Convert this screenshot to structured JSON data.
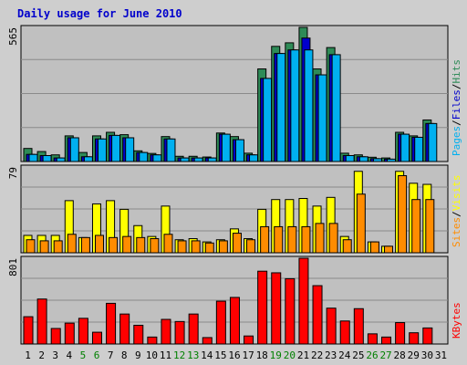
{
  "title": "Daily usage for June 2010",
  "colors": {
    "background": "#cecece",
    "plot_bg": "#c0c0c0",
    "hits": "#2e8b57",
    "files": "#0000cc",
    "pages": "#00b0f0",
    "visits": "#ffff00",
    "sites": "#ff8c00",
    "kbytes": "#ff0000",
    "title": "#0000cc",
    "weekend_day": "#008000"
  },
  "chart_data": [
    {
      "type": "bar",
      "panel": "hits-files-pages",
      "y_max_label": "565",
      "ylim": [
        0,
        565
      ],
      "side_labels": [
        "Pages",
        "/",
        "Files",
        "/",
        "Hits"
      ],
      "categories": [
        "1",
        "2",
        "3",
        "4",
        "5",
        "6",
        "7",
        "8",
        "9",
        "10",
        "11",
        "12",
        "13",
        "14",
        "15",
        "16",
        "17",
        "18",
        "19",
        "20",
        "21",
        "22",
        "23",
        "24",
        "25",
        "26",
        "27",
        "28",
        "29",
        "30"
      ],
      "series": [
        {
          "name": "Hits",
          "values": [
            55,
            42,
            28,
            108,
            38,
            108,
            123,
            113,
            45,
            34,
            105,
            22,
            22,
            19,
            120,
            105,
            35,
            390,
            485,
            500,
            565,
            390,
            480,
            35,
            28,
            18,
            15,
            123,
            108,
            175
          ]
        },
        {
          "name": "Files",
          "values": [
            30,
            25,
            15,
            100,
            20,
            95,
            110,
            100,
            38,
            28,
            95,
            15,
            15,
            15,
            115,
            92,
            28,
            350,
            455,
            470,
            520,
            365,
            450,
            25,
            20,
            12,
            10,
            115,
            102,
            160
          ]
        },
        {
          "name": "Pages",
          "values": [
            30,
            25,
            15,
            100,
            20,
            95,
            110,
            100,
            38,
            28,
            95,
            15,
            15,
            15,
            115,
            92,
            28,
            350,
            455,
            470,
            470,
            365,
            450,
            25,
            20,
            12,
            10,
            115,
            102,
            160
          ]
        }
      ]
    },
    {
      "type": "bar",
      "panel": "visits-sites",
      "y_max_label": "79",
      "ylim": [
        0,
        79
      ],
      "side_labels": [
        "Sites",
        "/",
        "Visits"
      ],
      "categories": [
        "1",
        "2",
        "3",
        "4",
        "5",
        "6",
        "7",
        "8",
        "9",
        "10",
        "11",
        "12",
        "13",
        "14",
        "15",
        "16",
        "17",
        "18",
        "19",
        "20",
        "21",
        "22",
        "23",
        "24",
        "25",
        "26",
        "27",
        "28",
        "29",
        "30"
      ],
      "series": [
        {
          "name": "Visits",
          "values": [
            16,
            16,
            16,
            48,
            14,
            45,
            48,
            40,
            25,
            15,
            43,
            12,
            13,
            10,
            12,
            22,
            13,
            40,
            49,
            49,
            50,
            43,
            51,
            15,
            75,
            10,
            6,
            75,
            64,
            63
          ]
        },
        {
          "name": "Sites",
          "values": [
            12,
            11,
            11,
            17,
            14,
            16,
            14,
            15,
            14,
            13,
            17,
            11,
            11,
            9,
            11,
            18,
            12,
            24,
            24,
            24,
            24,
            27,
            27,
            12,
            54,
            10,
            6,
            71,
            49,
            49
          ]
        }
      ]
    },
    {
      "type": "bar",
      "panel": "kbytes",
      "y_max_label": "801",
      "ylim": [
        0,
        801
      ],
      "side_labels": [
        "KBytes"
      ],
      "categories": [
        "1",
        "2",
        "3",
        "4",
        "5",
        "6",
        "7",
        "8",
        "9",
        "10",
        "11",
        "12",
        "13",
        "14",
        "15",
        "16",
        "17",
        "18",
        "19",
        "20",
        "21",
        "22",
        "23",
        "24",
        "25",
        "26",
        "27",
        "28",
        "29",
        "30"
      ],
      "series": [
        {
          "name": "KBytes",
          "values": [
            255,
            420,
            145,
            195,
            240,
            110,
            380,
            280,
            175,
            65,
            230,
            210,
            280,
            60,
            400,
            435,
            75,
            680,
            665,
            610,
            801,
            545,
            335,
            215,
            330,
            95,
            65,
            200,
            105,
            150
          ]
        }
      ]
    }
  ],
  "x_labels": [
    {
      "text": "1"
    },
    {
      "text": "2"
    },
    {
      "text": "3"
    },
    {
      "text": "4"
    },
    {
      "text": "5",
      "weekend": true
    },
    {
      "text": "6",
      "weekend": true
    },
    {
      "text": "7"
    },
    {
      "text": "8"
    },
    {
      "text": "9"
    },
    {
      "text": "10"
    },
    {
      "text": "11"
    },
    {
      "text": "12",
      "weekend": true
    },
    {
      "text": "13",
      "weekend": true
    },
    {
      "text": "14"
    },
    {
      "text": "15"
    },
    {
      "text": "16"
    },
    {
      "text": "17"
    },
    {
      "text": "18"
    },
    {
      "text": "19",
      "weekend": true
    },
    {
      "text": "20",
      "weekend": true
    },
    {
      "text": "21"
    },
    {
      "text": "22"
    },
    {
      "text": "23"
    },
    {
      "text": "24"
    },
    {
      "text": "25"
    },
    {
      "text": "26",
      "weekend": true
    },
    {
      "text": "27",
      "weekend": true
    },
    {
      "text": "28"
    },
    {
      "text": "29"
    },
    {
      "text": "30"
    },
    {
      "text": "31"
    }
  ]
}
